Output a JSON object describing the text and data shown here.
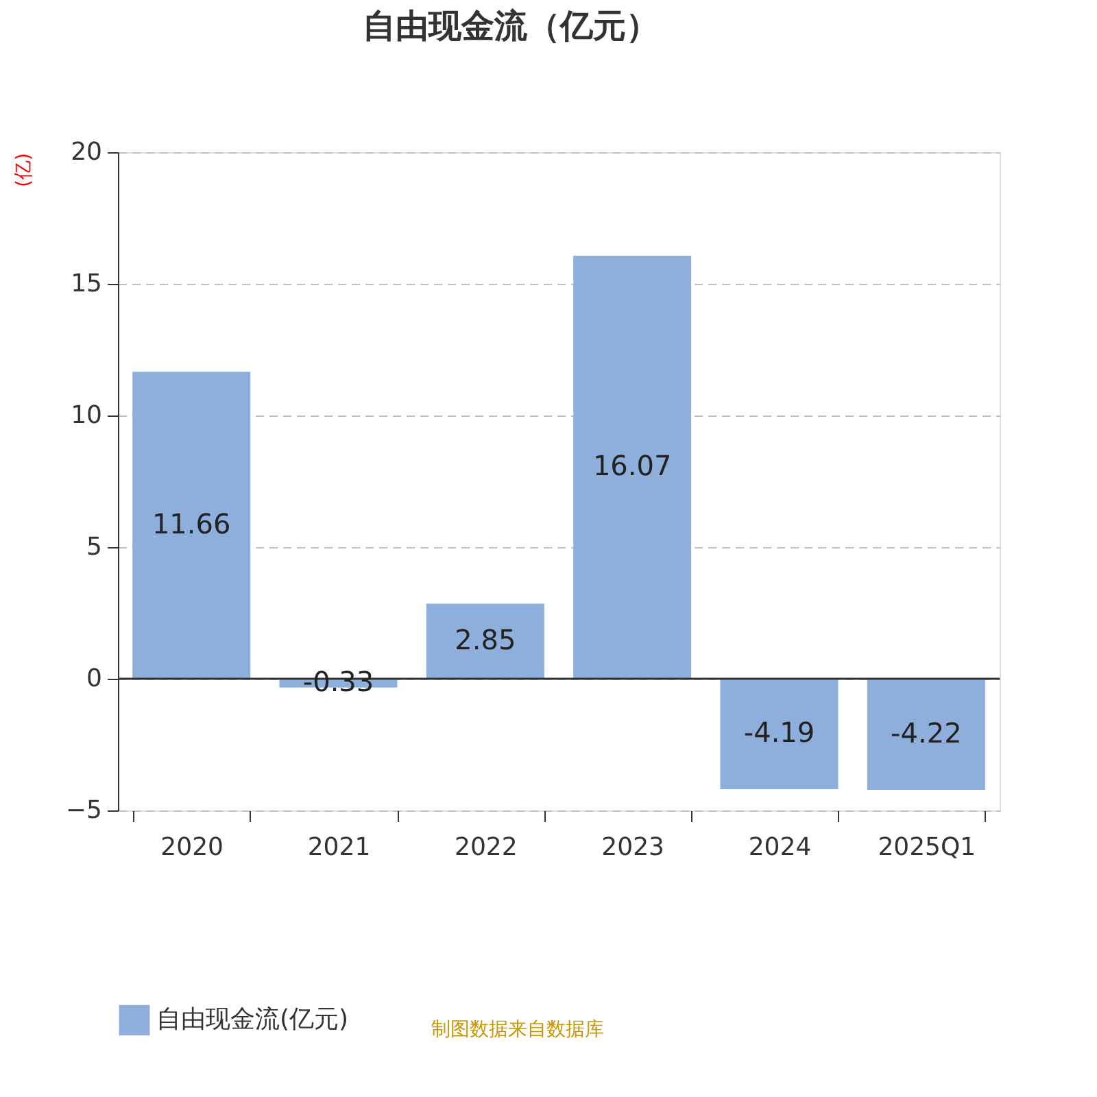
{
  "chart_data": {
    "type": "bar",
    "title": "自由现金流（亿元）",
    "ylabel": "(亿)",
    "categories": [
      "2020",
      "2021",
      "2022",
      "2023",
      "2024",
      "2025Q1"
    ],
    "series": [
      {
        "name": "自由现金流(亿元)",
        "color": "#8eaedb",
        "values": [
          11.66,
          -0.33,
          2.85,
          16.07,
          -4.19,
          -4.22
        ]
      }
    ],
    "ylim": [
      -5,
      20
    ],
    "yticks": [
      -5,
      0,
      5,
      10,
      15,
      20
    ],
    "grid": "y",
    "legend": "bottom",
    "data_labels": true,
    "annotations": [
      "制图数据来自数据库"
    ]
  }
}
